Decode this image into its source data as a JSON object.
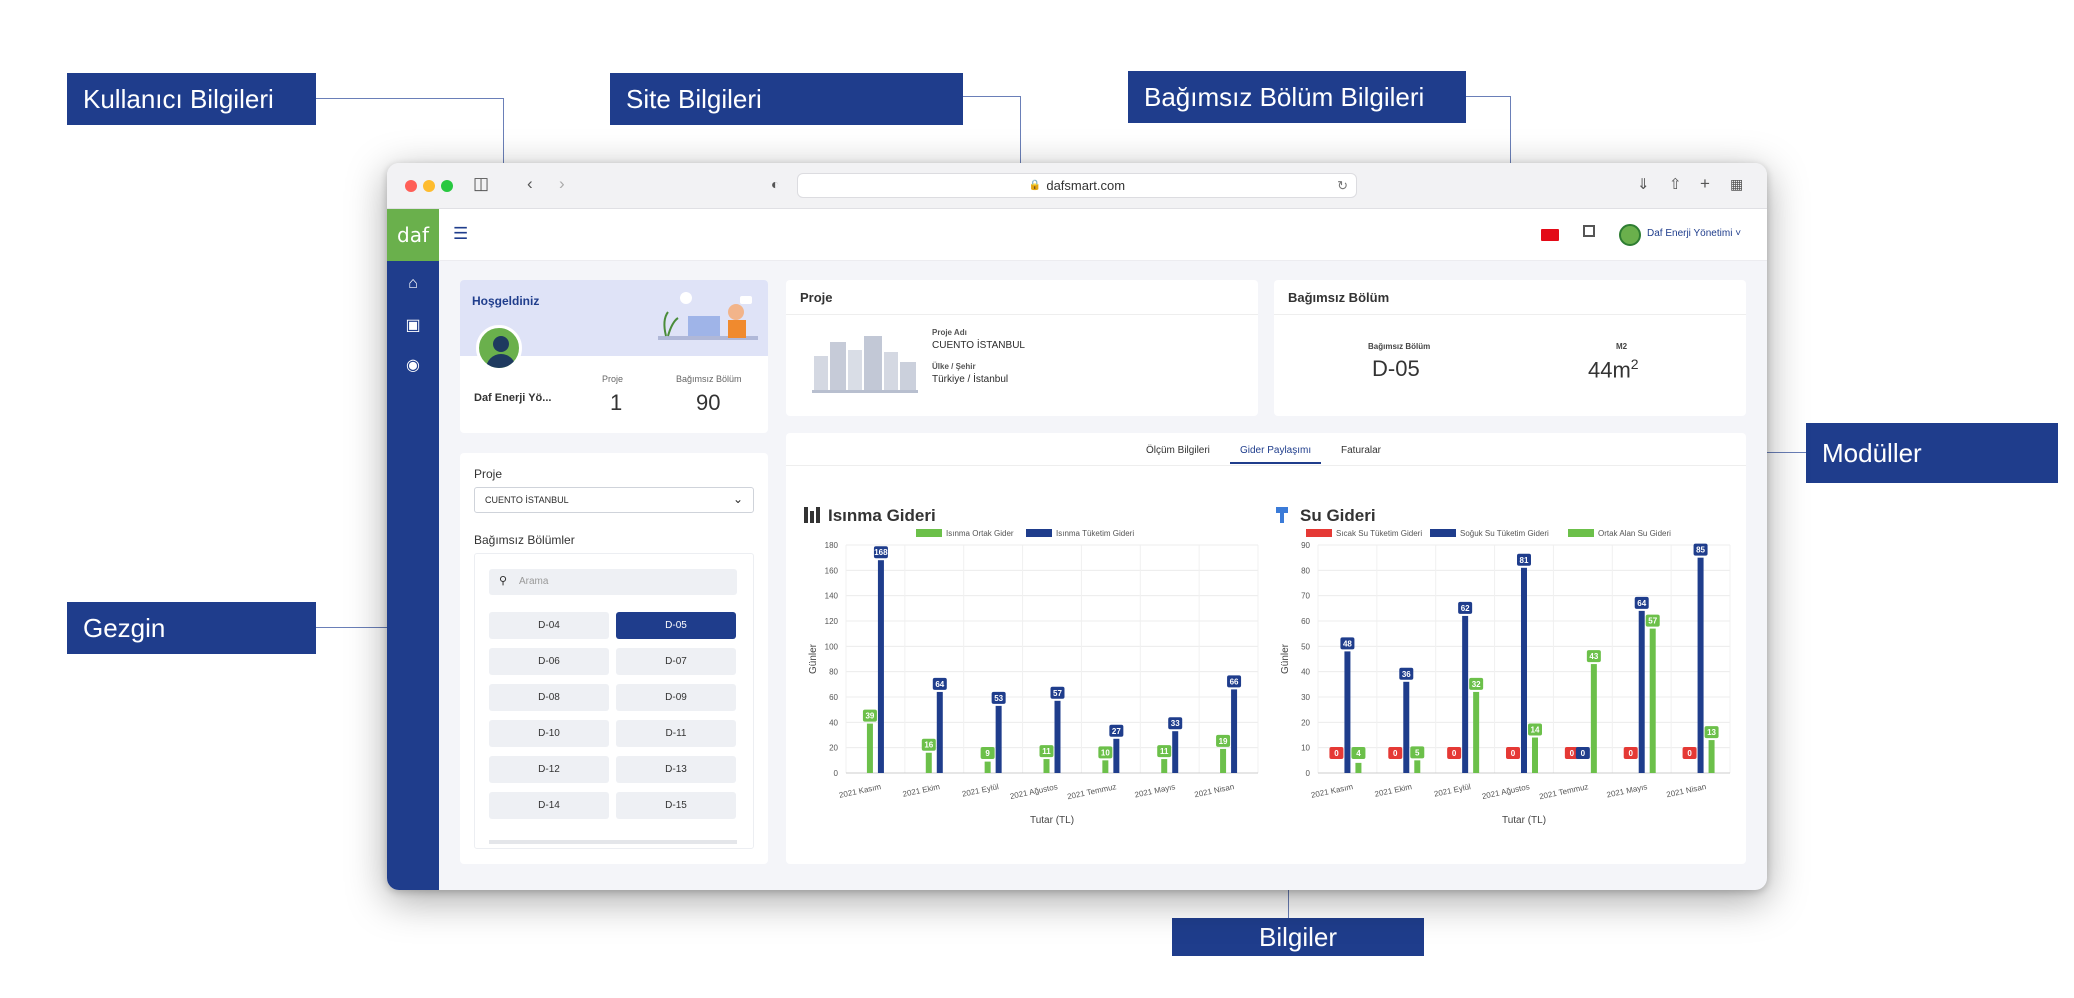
{
  "callouts": {
    "user": "Kullanıcı Bilgileri",
    "site": "Site Bilgileri",
    "unit": "Bağımsız Bölüm Bilgileri",
    "modules": "Modüller",
    "navigator": "Gezgin",
    "info": "Bilgiler"
  },
  "browser": {
    "url": "dafsmart.com"
  },
  "topbar": {
    "logo": "daf",
    "user_name": "Daf Enerji Yönetimi"
  },
  "welcome": {
    "title": "Hoşgeldiniz",
    "user_short": "Daf Enerji Yö...",
    "project_label": "Proje",
    "project_value": "1",
    "unit_label": "Bağımsız Bölüm",
    "unit_value": "90"
  },
  "project_card": {
    "title": "Proje",
    "name_label": "Proje Adı",
    "name_value": "CUENTO İSTANBUL",
    "country_label": "Ülke / Şehir",
    "country_value": "Türkiye / İstanbul"
  },
  "unit_card": {
    "title": "Bağımsız Bölüm",
    "unit_label": "Bağımsız Bölüm",
    "unit_value": "D-05",
    "area_label": "M2",
    "area_value": "44m",
    "area_sup": "2"
  },
  "navigator": {
    "project_label": "Proje",
    "project_selected": "CUENTO İSTANBUL",
    "units_label": "Bağımsız Bölümler",
    "search_placeholder": "Arama",
    "units": [
      "D-04",
      "D-05",
      "D-06",
      "D-07",
      "D-08",
      "D-09",
      "D-10",
      "D-11",
      "D-12",
      "D-13",
      "D-14",
      "D-15"
    ],
    "selected": "D-05"
  },
  "tabs": [
    "Ölçüm Bilgileri",
    "Gider Paylaşımı",
    "Faturalar"
  ],
  "active_tab": "Gider Paylaşımı",
  "colors": {
    "navy": "#1f3d8c",
    "green": "#6cc04a",
    "red": "#e53935"
  },
  "chart_data": [
    {
      "type": "bar",
      "title": "Isınma Gideri",
      "xlabel": "Tutar (TL)",
      "ylabel": "Günler",
      "ylim": [
        0,
        180
      ],
      "yticks": [
        0,
        20,
        40,
        60,
        80,
        100,
        120,
        140,
        160,
        180
      ],
      "categories": [
        "2021 Kasım",
        "2021 Ekim",
        "2021 Eylül",
        "2021 Ağustos",
        "2021 Temmuz",
        "2021 Mayıs",
        "2021 Nisan"
      ],
      "series": [
        {
          "name": "Isınma Ortak Gider",
          "color": "#6cc04a",
          "values": [
            39,
            16,
            9,
            11,
            10,
            11,
            19
          ]
        },
        {
          "name": "Isınma Tüketim Gideri",
          "color": "#1f3d8c",
          "values": [
            168,
            64,
            53,
            57,
            27,
            33,
            66
          ]
        }
      ],
      "legend": "top"
    },
    {
      "type": "bar",
      "title": "Su Gideri",
      "xlabel": "Tutar (TL)",
      "ylabel": "Günler",
      "ylim": [
        0,
        90
      ],
      "yticks": [
        0,
        10,
        20,
        30,
        40,
        50,
        60,
        70,
        80,
        90
      ],
      "categories": [
        "2021 Kasım",
        "2021 Ekim",
        "2021 Eylül",
        "2021 Ağustos",
        "2021 Temmuz",
        "2021 Mayıs",
        "2021 Nisan"
      ],
      "series": [
        {
          "name": "Sıcak Su Tüketim Gideri",
          "color": "#e53935",
          "values": [
            0,
            0,
            0,
            0,
            0,
            0,
            0
          ]
        },
        {
          "name": "Soğuk Su Tüketim Gideri",
          "color": "#1f3d8c",
          "values": [
            48,
            36,
            62,
            81,
            0,
            64,
            85
          ]
        },
        {
          "name": "Ortak Alan Su Gideri",
          "color": "#6cc04a",
          "values": [
            4,
            5,
            32,
            14,
            43,
            57,
            13
          ]
        }
      ],
      "legend": "top"
    }
  ]
}
